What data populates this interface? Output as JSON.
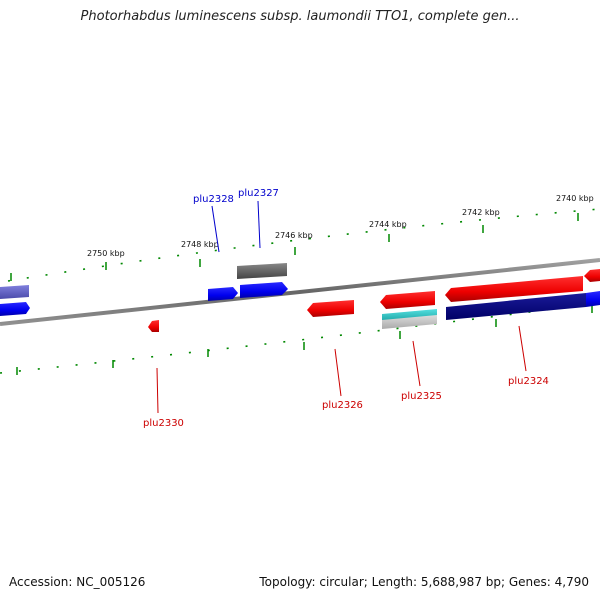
{
  "title": "Photorhabdus luminescens subsp. laumondii TTO1, complete gen...",
  "footer": {
    "accession": "Accession: NC_005126",
    "summary": "Topology: circular; Length: 5,688,987 bp; Genes: 4,790"
  },
  "scale_labels": [
    "2750 kbp",
    "2748 kbp",
    "2746 kbp",
    "2744 kbp",
    "2742 kbp",
    "2740 kbp"
  ],
  "genes": {
    "plu2328": "plu2328",
    "plu2327": "plu2327",
    "plu2330": "plu2330",
    "plu2326": "plu2326",
    "plu2325": "plu2325",
    "plu2324": "plu2324"
  },
  "colors": {
    "forward": "#ff0000",
    "reverse": "#0000ff",
    "dark_blue": "#000080",
    "pale_blue": "#6a6ad0",
    "grey": "#666666",
    "cyan": "#22cccc",
    "tick": "#008800",
    "label_red": "#cc0000",
    "label_blue": "#0000cc"
  }
}
